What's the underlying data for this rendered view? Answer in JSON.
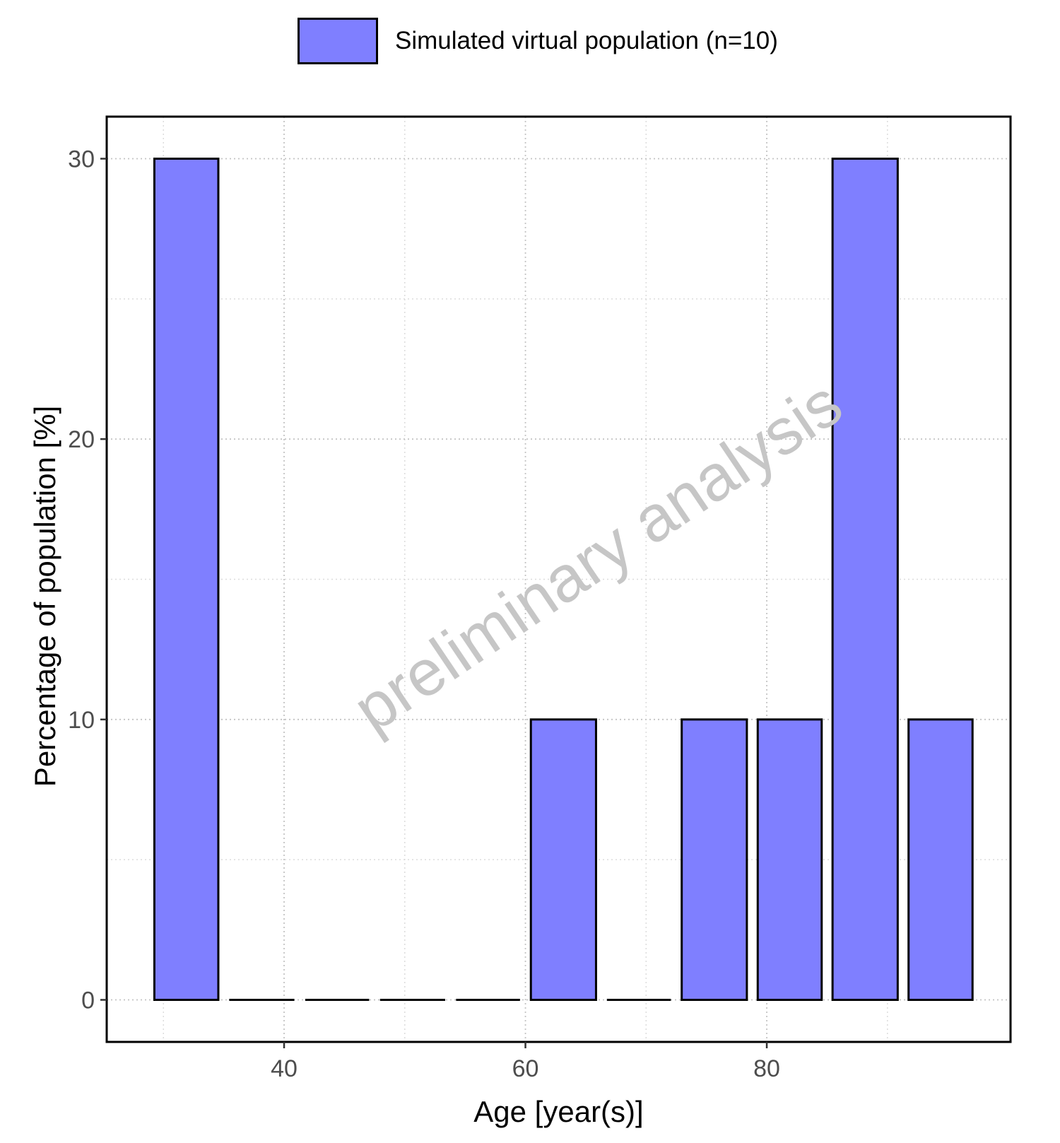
{
  "legend": {
    "label": "Simulated virtual population (n=10)",
    "color": "#7f7fff"
  },
  "watermark": "preliminary analysis",
  "chart_data": {
    "type": "bar",
    "title": "",
    "xlabel": "Age [year(s)]",
    "ylabel": "Percentage of population [%]",
    "bar_color": "#7f7fff",
    "bar_edge_color": "#000000",
    "xlim": [
      25.3,
      100.2
    ],
    "ylim": [
      -1.5,
      31.5
    ],
    "x_ticks": [
      40,
      60,
      80
    ],
    "y_ticks": [
      0,
      10,
      20,
      30
    ],
    "grid": "dotted",
    "legend_position": "top",
    "bin_width": 6.25,
    "series": [
      {
        "name": "Simulated virtual population (n=10)",
        "bins": [
          {
            "x_start": 28.8,
            "x_end": 35.0,
            "value": 30
          },
          {
            "x_start": 35.0,
            "x_end": 41.3,
            "value": 0
          },
          {
            "x_start": 41.3,
            "x_end": 47.5,
            "value": 0
          },
          {
            "x_start": 47.5,
            "x_end": 53.8,
            "value": 0
          },
          {
            "x_start": 53.8,
            "x_end": 60.0,
            "value": 0
          },
          {
            "x_start": 60.0,
            "x_end": 66.3,
            "value": 10
          },
          {
            "x_start": 66.3,
            "x_end": 72.5,
            "value": 0
          },
          {
            "x_start": 72.5,
            "x_end": 78.8,
            "value": 10
          },
          {
            "x_start": 78.8,
            "x_end": 85.0,
            "value": 10
          },
          {
            "x_start": 85.0,
            "x_end": 91.3,
            "value": 30
          },
          {
            "x_start": 91.3,
            "x_end": 97.5,
            "value": 10
          }
        ]
      }
    ]
  }
}
